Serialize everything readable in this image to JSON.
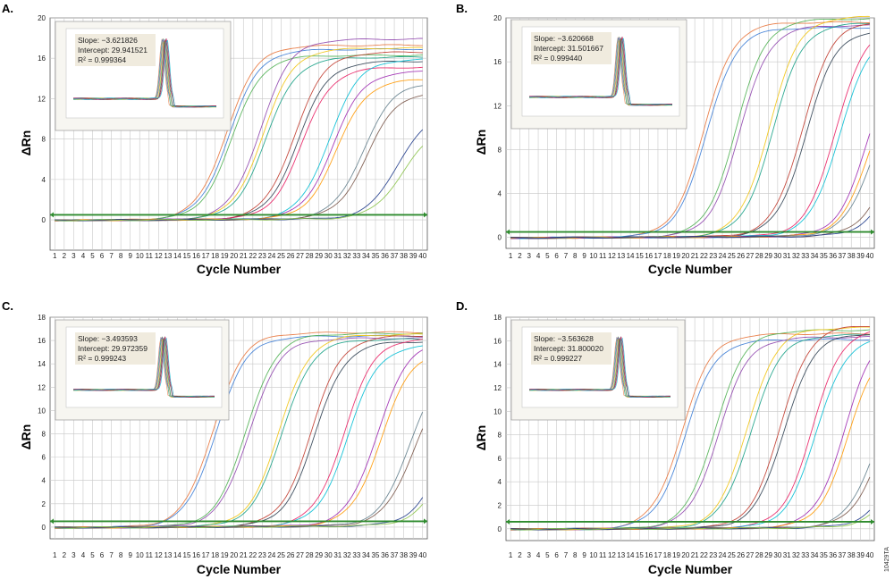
{
  "figure_id": "10429TA",
  "colors": {
    "threshold": "#2e8b2e",
    "grid": "#c8c8c8",
    "inset_box": "#efeadc",
    "curve_palette": [
      "#e8743b",
      "#3a7bd5",
      "#4caf50",
      "#8e44ad",
      "#f1c40f",
      "#16a085",
      "#c0392b",
      "#2c3e50",
      "#e91e63",
      "#00bcd4",
      "#9c27b0",
      "#ff9800",
      "#607d8b",
      "#795548",
      "#1e3a8a",
      "#8bc34a"
    ]
  },
  "chart_data": [
    {
      "panel": "A.",
      "type": "line",
      "xlabel": "Cycle Number",
      "ylabel": "ΔRn",
      "x": [
        1,
        2,
        3,
        4,
        5,
        6,
        7,
        8,
        9,
        10,
        11,
        12,
        13,
        14,
        15,
        16,
        17,
        18,
        19,
        20,
        21,
        22,
        23,
        24,
        25,
        26,
        27,
        28,
        29,
        30,
        31,
        32,
        33,
        34,
        35,
        36,
        37,
        38,
        39,
        40
      ],
      "ylim": [
        -3,
        20
      ],
      "yticks": [
        0,
        4,
        8,
        12,
        16,
        20
      ],
      "threshold": 0.5,
      "grid": true,
      "inset": {
        "slope": "Slope: −3.621826",
        "intercept": "Intercept: 29.941521",
        "r2": "R² = 0.999364"
      },
      "series": [
        {
          "ct": 15.0,
          "plateau": 17.2
        },
        {
          "ct": 15.3,
          "plateau": 16.8
        },
        {
          "ct": 15.6,
          "plateau": 16.2
        },
        {
          "ct": 18.6,
          "plateau": 17.8
        },
        {
          "ct": 18.9,
          "plateau": 16.9
        },
        {
          "ct": 19.2,
          "plateau": 16.0
        },
        {
          "ct": 22.2,
          "plateau": 16.5
        },
        {
          "ct": 22.6,
          "plateau": 15.6
        },
        {
          "ct": 23.0,
          "plateau": 15.0
        },
        {
          "ct": 25.9,
          "plateau": 15.8
        },
        {
          "ct": 26.3,
          "plateau": 14.6
        },
        {
          "ct": 26.7,
          "plateau": 13.8
        },
        {
          "ct": 29.5,
          "plateau": 13.5
        },
        {
          "ct": 29.9,
          "plateau": 12.6
        },
        {
          "ct": 33.1,
          "plateau": 10.5
        },
        {
          "ct": 33.6,
          "plateau": 9.0
        }
      ]
    },
    {
      "panel": "B.",
      "type": "line",
      "xlabel": "Cycle Number",
      "ylabel": "ΔRn",
      "x": [
        1,
        2,
        3,
        4,
        5,
        6,
        7,
        8,
        9,
        10,
        11,
        12,
        13,
        14,
        15,
        16,
        17,
        18,
        19,
        20,
        21,
        22,
        23,
        24,
        25,
        26,
        27,
        28,
        29,
        30,
        31,
        32,
        33,
        34,
        35,
        36,
        37,
        38,
        39,
        40
      ],
      "ylim": [
        -1,
        20
      ],
      "yticks": [
        0,
        4,
        8,
        12,
        16,
        20
      ],
      "threshold": 0.5,
      "grid": true,
      "inset": {
        "slope": "Slope: −3.620668",
        "intercept": "Intercept: 31.501667",
        "r2": "R² = 0.999440"
      },
      "series": [
        {
          "ct": 17.8,
          "plateau": 19.5
        },
        {
          "ct": 18.1,
          "plateau": 19.0
        },
        {
          "ct": 21.3,
          "plateau": 19.8
        },
        {
          "ct": 21.7,
          "plateau": 19.2
        },
        {
          "ct": 24.9,
          "plateau": 20.0
        },
        {
          "ct": 25.3,
          "plateau": 19.4
        },
        {
          "ct": 28.5,
          "plateau": 19.6
        },
        {
          "ct": 28.9,
          "plateau": 18.8
        },
        {
          "ct": 32.1,
          "plateau": 19.2
        },
        {
          "ct": 32.5,
          "plateau": 18.4
        },
        {
          "ct": 35.6,
          "plateau": 17.5
        },
        {
          "ct": 36.0,
          "plateau": 16.6
        },
        {
          "ct": 36.4,
          "plateau": 16.0
        },
        {
          "ct": 37.8,
          "plateau": 12.0
        },
        {
          "ct": 38.3,
          "plateau": 10.5
        }
      ]
    },
    {
      "panel": "C.",
      "type": "line",
      "xlabel": "Cycle Number",
      "ylabel": "ΔRn",
      "x": [
        1,
        2,
        3,
        4,
        5,
        6,
        7,
        8,
        9,
        10,
        11,
        12,
        13,
        14,
        15,
        16,
        17,
        18,
        19,
        20,
        21,
        22,
        23,
        24,
        25,
        26,
        27,
        28,
        29,
        30,
        31,
        32,
        33,
        34,
        35,
        36,
        37,
        38,
        39,
        40
      ],
      "ylim": [
        -1,
        18
      ],
      "yticks": [
        0,
        2,
        4,
        6,
        8,
        10,
        12,
        14,
        16,
        18
      ],
      "threshold": 0.5,
      "grid": true,
      "inset": {
        "slope": "Slope: −3.493593",
        "intercept": "Intercept: 29.972359",
        "r2": "R² = 0.999243"
      },
      "series": [
        {
          "ct": 13.6,
          "plateau": 16.6
        },
        {
          "ct": 13.9,
          "plateau": 16.3
        },
        {
          "ct": 17.1,
          "plateau": 16.5
        },
        {
          "ct": 17.4,
          "plateau": 16.1
        },
        {
          "ct": 20.6,
          "plateau": 16.4
        },
        {
          "ct": 20.9,
          "plateau": 16.0
        },
        {
          "ct": 24.0,
          "plateau": 16.3
        },
        {
          "ct": 24.4,
          "plateau": 15.8
        },
        {
          "ct": 27.5,
          "plateau": 16.1
        },
        {
          "ct": 27.9,
          "plateau": 15.5
        },
        {
          "ct": 31.0,
          "plateau": 15.8
        },
        {
          "ct": 31.4,
          "plateau": 15.0
        },
        {
          "ct": 34.5,
          "plateau": 14.2
        },
        {
          "ct": 34.9,
          "plateau": 13.2
        },
        {
          "ct": 37.9,
          "plateau": 11.5
        },
        {
          "ct": 38.3,
          "plateau": 10.4
        }
      ]
    },
    {
      "panel": "D.",
      "type": "line",
      "xlabel": "Cycle Number",
      "ylabel": "ΔRn",
      "x": [
        1,
        2,
        3,
        4,
        5,
        6,
        7,
        8,
        9,
        10,
        11,
        12,
        13,
        14,
        15,
        16,
        17,
        18,
        19,
        20,
        21,
        22,
        23,
        24,
        25,
        26,
        27,
        28,
        29,
        30,
        31,
        32,
        33,
        34,
        35,
        36,
        37,
        38,
        39,
        40
      ],
      "ylim": [
        -1,
        18
      ],
      "yticks": [
        0,
        2,
        4,
        6,
        8,
        10,
        12,
        14,
        16,
        18
      ],
      "threshold": 0.6,
      "grid": true,
      "inset": {
        "slope": "Slope: −3.563628",
        "intercept": "Intercept: 31.800020",
        "r2": "R² = 0.999227"
      },
      "series": [
        {
          "ct": 15.4,
          "plateau": 16.5
        },
        {
          "ct": 15.8,
          "plateau": 16.0
        },
        {
          "ct": 19.0,
          "plateau": 16.8
        },
        {
          "ct": 19.4,
          "plateau": 16.2
        },
        {
          "ct": 22.5,
          "plateau": 17.0
        },
        {
          "ct": 22.9,
          "plateau": 16.4
        },
        {
          "ct": 26.1,
          "plateau": 17.2
        },
        {
          "ct": 26.5,
          "plateau": 16.5
        },
        {
          "ct": 29.6,
          "plateau": 17.0
        },
        {
          "ct": 30.0,
          "plateau": 16.2
        },
        {
          "ct": 33.1,
          "plateau": 16.8
        },
        {
          "ct": 33.5,
          "plateau": 15.8
        },
        {
          "ct": 36.6,
          "plateau": 14.5
        },
        {
          "ct": 37.0,
          "plateau": 13.5
        },
        {
          "ct": 38.4,
          "plateau": 9.0
        },
        {
          "ct": 38.8,
          "plateau": 7.8
        }
      ]
    }
  ]
}
